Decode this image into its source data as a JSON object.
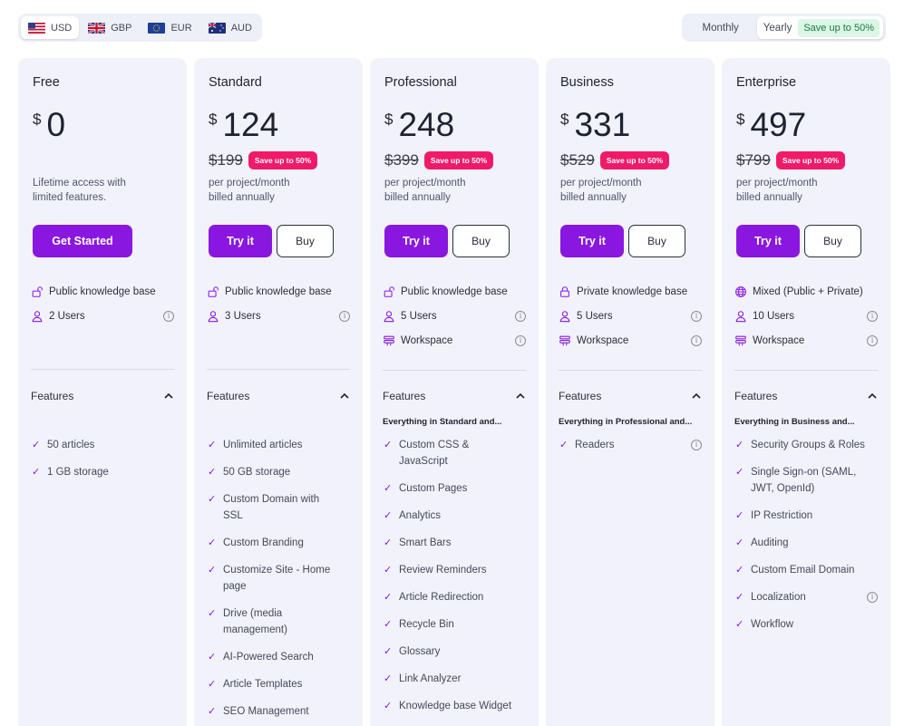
{
  "currencies": [
    {
      "code": "USD",
      "flag": "us-flag-icon",
      "active": true
    },
    {
      "code": "GBP",
      "flag": "uk-flag-icon",
      "active": false
    },
    {
      "code": "EUR",
      "flag": "eu-flag-icon",
      "active": false
    },
    {
      "code": "AUD",
      "flag": "au-flag-icon",
      "active": false
    }
  ],
  "billing": {
    "monthly_label": "Monthly",
    "yearly_label": "Yearly",
    "save_label": "Save up to 50%",
    "selected": "Yearly"
  },
  "colors": {
    "accent": "#8a17e0",
    "badge": "#f01a6a",
    "card_bg": "#f1f2fa"
  },
  "plans": [
    {
      "name": "Free",
      "currency": "$",
      "price": "0",
      "old_price": "",
      "badge": "",
      "desc_line1": "Lifetime access with",
      "desc_line2": "limited features.",
      "primary_label": "Get Started",
      "secondary_label": "",
      "meta": [
        {
          "icon": "unlock-icon",
          "text": "Public knowledge base",
          "info": false
        },
        {
          "icon": "user-icon",
          "text": "2 Users",
          "info": true
        }
      ],
      "features_label": "Features",
      "everything": "",
      "features": [
        {
          "text": "50 articles",
          "info": false
        },
        {
          "text": "1 GB storage",
          "info": false
        }
      ]
    },
    {
      "name": "Standard",
      "currency": "$",
      "price": "124",
      "old_price": "$199",
      "badge": "Save up to 50%",
      "desc_line1": "per project/month",
      "desc_line2": "billed annually",
      "primary_label": "Try it",
      "secondary_label": "Buy",
      "meta": [
        {
          "icon": "unlock-icon",
          "text": "Public knowledge base",
          "info": false
        },
        {
          "icon": "user-icon",
          "text": "3 Users",
          "info": true
        }
      ],
      "features_label": "Features",
      "everything": "",
      "features": [
        {
          "text": "Unlimited articles",
          "info": false
        },
        {
          "text": "50 GB storage",
          "info": false
        },
        {
          "text": "Custom Domain with SSL",
          "info": false
        },
        {
          "text": "Custom Branding",
          "info": false
        },
        {
          "text": "Customize Site - Home page",
          "info": false
        },
        {
          "text": "Drive (media management)",
          "info": false
        },
        {
          "text": "AI-Powered Search",
          "info": false
        },
        {
          "text": "Article Templates",
          "info": false
        },
        {
          "text": "SEO Management",
          "info": false
        }
      ]
    },
    {
      "name": "Professional",
      "currency": "$",
      "price": "248",
      "old_price": "$399",
      "badge": "Save up to 50%",
      "desc_line1": "per project/month",
      "desc_line2": "billed annually",
      "primary_label": "Try it",
      "secondary_label": "Buy",
      "meta": [
        {
          "icon": "unlock-icon",
          "text": "Public knowledge base",
          "info": false
        },
        {
          "icon": "user-icon",
          "text": "5 Users",
          "info": true
        },
        {
          "icon": "workspace-icon",
          "text": "Workspace",
          "info": true
        }
      ],
      "features_label": "Features",
      "everything": "Everything in Standard and...",
      "features": [
        {
          "text": "Custom CSS & JavaScript",
          "info": false
        },
        {
          "text": "Custom Pages",
          "info": false
        },
        {
          "text": "Analytics",
          "info": false
        },
        {
          "text": "Smart Bars",
          "info": false
        },
        {
          "text": "Review Reminders",
          "info": false
        },
        {
          "text": "Article Redirection",
          "info": false
        },
        {
          "text": "Recycle Bin",
          "info": false
        },
        {
          "text": "Glossary",
          "info": false
        },
        {
          "text": "Link Analyzer",
          "info": false
        },
        {
          "text": "Knowledge base Widget",
          "info": false
        }
      ]
    },
    {
      "name": "Business",
      "currency": "$",
      "price": "331",
      "old_price": "$529",
      "badge": "Save up to 50%",
      "desc_line1": "per project/month",
      "desc_line2": "billed annually",
      "primary_label": "Try it",
      "secondary_label": "Buy",
      "meta": [
        {
          "icon": "lock-icon",
          "text": "Private knowledge base",
          "info": false
        },
        {
          "icon": "user-icon",
          "text": "5 Users",
          "info": true
        },
        {
          "icon": "workspace-icon",
          "text": "Workspace",
          "info": true
        }
      ],
      "features_label": "Features",
      "everything": "Everything in Professional and...",
      "features": [
        {
          "text": "Readers",
          "info": true
        }
      ]
    },
    {
      "name": "Enterprise",
      "currency": "$",
      "price": "497",
      "old_price": "$799",
      "badge": "Save up to 50%",
      "desc_line1": "per project/month",
      "desc_line2": "billed annually",
      "primary_label": "Try it",
      "secondary_label": "Buy",
      "meta": [
        {
          "icon": "globe-icon",
          "text": "Mixed (Public + Private)",
          "info": false
        },
        {
          "icon": "user-icon",
          "text": "10 Users",
          "info": true
        },
        {
          "icon": "workspace-icon",
          "text": "Workspace",
          "info": true
        }
      ],
      "features_label": "Features",
      "everything": "Everything in Business and...",
      "features": [
        {
          "text": "Security Groups & Roles",
          "info": false
        },
        {
          "text": "Single Sign-on (SAML, JWT, OpenId)",
          "info": false
        },
        {
          "text": "IP Restriction",
          "info": false
        },
        {
          "text": "Auditing",
          "info": false
        },
        {
          "text": "Custom Email Domain",
          "info": false
        },
        {
          "text": "Localization",
          "info": true
        },
        {
          "text": "Workflow",
          "info": false
        }
      ]
    }
  ]
}
